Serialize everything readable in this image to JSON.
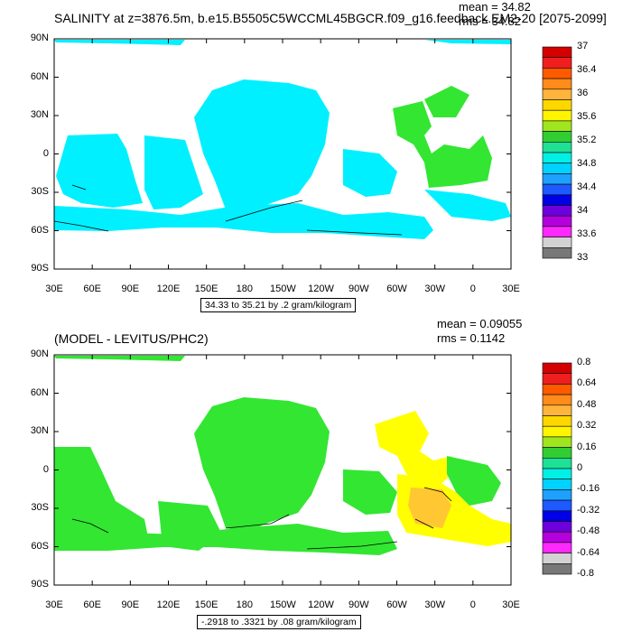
{
  "panels": [
    {
      "title": "SALINITY at z=3876.5m, b.e15.B5505C5WCCML45BGCR.f09_g16.feedback.EM2-20 [2075-2099]",
      "mean_label": "mean = 34.82",
      "rms_label": "rms = 34.82",
      "range_label": "34.33 to 35.21 by .2 gram/kilogram",
      "colorbar_labels": [
        "37",
        "36.4",
        "36",
        "35.6",
        "35.2",
        "34.8",
        "34.4",
        "34",
        "33.6",
        "33"
      ],
      "colorbar_colors": [
        "#d40000",
        "#f01e1e",
        "#ff5a00",
        "#ff8c1a",
        "#ffb43c",
        "#ffd700",
        "#fff500",
        "#a0e61e",
        "#32cd32",
        "#1ee196",
        "#00f0e6",
        "#00d2ff",
        "#1ea0ff",
        "#1e5aff",
        "#0000e6",
        "#6e00dc",
        "#b400dc",
        "#ff28ff",
        "#d2d2d2",
        "#787878"
      ]
    },
    {
      "title": "(MODEL - LEVITUS/PHC2)",
      "mean_label": "mean = 0.09055",
      "rms_label": "rms = 0.1142",
      "range_label": "-.2918 to .3321 by .08 gram/kilogram",
      "colorbar_labels": [
        "0.8",
        "0.64",
        "0.48",
        "0.32",
        "0.16",
        "0",
        "-0.16",
        "-0.32",
        "-0.48",
        "-0.64",
        "-0.8"
      ],
      "colorbar_colors": [
        "#d40000",
        "#f01e1e",
        "#ff5a00",
        "#ff8c1a",
        "#ffb43c",
        "#ffd700",
        "#fff500",
        "#a0e61e",
        "#32cd32",
        "#1ee196",
        "#00f0e6",
        "#00d2ff",
        "#1ea0ff",
        "#1e5aff",
        "#0000e6",
        "#6e00dc",
        "#b400dc",
        "#ff28ff",
        "#d2d2d2",
        "#787878"
      ]
    }
  ],
  "axes": {
    "lat_labels": [
      "90N",
      "60N",
      "30N",
      "0",
      "30S",
      "60S",
      "90S"
    ],
    "lon_labels": [
      "30E",
      "60E",
      "90E",
      "120E",
      "150E",
      "180",
      "150W",
      "120W",
      "90W",
      "60W",
      "30W",
      "0",
      "30E"
    ]
  },
  "colors": {
    "cyan": "#00f0ff",
    "green": "#32e632",
    "yellow": "#ffff00",
    "orange": "#ffc832",
    "light_green": "#8cf03c"
  },
  "chart_data": [
    {
      "type": "heatmap",
      "title": "SALINITY at z=3876.5m, b.e15.B5505C5WCCML45BGCR.f09_g16.feedback.EM2-20 [2075-2099]",
      "xlabel": "",
      "ylabel": "",
      "xlim": [
        30,
        390
      ],
      "ylim": [
        -90,
        90
      ],
      "units": "gram/kilogram",
      "contour_min": 34.33,
      "contour_max": 35.21,
      "contour_interval": 0.2,
      "mean": 34.82,
      "rms": 34.82
    },
    {
      "type": "heatmap",
      "title": "(MODEL - LEVITUS/PHC2)",
      "xlabel": "",
      "ylabel": "",
      "xlim": [
        30,
        390
      ],
      "ylim": [
        -90,
        90
      ],
      "units": "gram/kilogram",
      "contour_min": -0.2918,
      "contour_max": 0.3321,
      "contour_interval": 0.08,
      "mean": 0.09055,
      "rms": 0.1142
    }
  ]
}
